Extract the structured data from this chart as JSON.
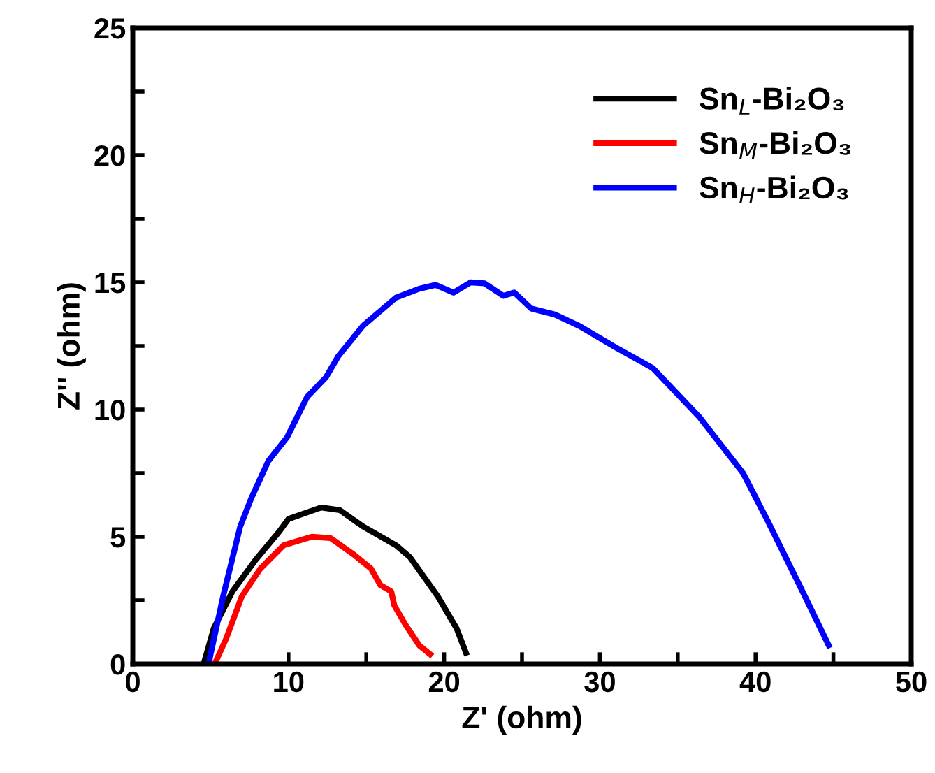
{
  "chart_data": {
    "type": "line",
    "xlabel": "Z' (ohm)",
    "ylabel": "Z'' (ohm)",
    "xlim": [
      0,
      50
    ],
    "ylim": [
      0,
      25
    ],
    "xticks": [
      0,
      {
        "value": 5,
        "label": null
      },
      10,
      {
        "value": 15,
        "label": null
      },
      20,
      {
        "value": 25,
        "label": null
      },
      30,
      {
        "value": 35,
        "label": null
      },
      40,
      {
        "value": 45,
        "label": null
      },
      50
    ],
    "yticks": [
      0,
      {
        "value": 2.5,
        "label": null
      },
      5,
      {
        "value": 7.5,
        "label": null
      },
      10,
      {
        "value": 12.5,
        "label": null
      },
      15,
      {
        "value": 17.5,
        "label": null
      },
      20,
      {
        "value": 22.5,
        "label": null
      },
      25
    ],
    "grid": false,
    "legend": "top right",
    "marker": "none",
    "line_style": "solid",
    "series": [
      {
        "name": "Sn$_{L}$-Bi₂O₃",
        "color": "#000000",
        "x": [
          4.6,
          5.2,
          6.4,
          7.9,
          9.4,
          10.0,
          12.1,
          13.3,
          14.8,
          16.9,
          17.8,
          19.6,
          20.8,
          21.4
        ],
        "values": [
          0.1,
          1.4,
          2.85,
          4.1,
          5.2,
          5.7,
          6.15,
          6.05,
          5.4,
          4.67,
          4.2,
          2.65,
          1.4,
          0.44
        ]
      },
      {
        "name": "Sn$_{M}$-Bi₂O₃",
        "color": "#ff0000",
        "x": [
          5.3,
          6.0,
          7.0,
          8.2,
          9.7,
          11.5,
          12.7,
          14.2,
          15.3,
          15.9,
          16.6,
          16.8,
          17.5,
          18.4,
          19.1
        ],
        "values": [
          0.05,
          1.0,
          2.65,
          3.75,
          4.67,
          5.0,
          4.95,
          4.3,
          3.75,
          3.1,
          2.85,
          2.3,
          1.56,
          0.73,
          0.38
        ]
      },
      {
        "name": "Sn$_{H}$-Bi₂O₃",
        "color": "#0000ff",
        "x": [
          4.9,
          5.8,
          6.9,
          7.6,
          8.7,
          9.9,
          11.2,
          12.4,
          13.2,
          14.8,
          16.9,
          18.4,
          19.45,
          20.6,
          21.7,
          22.6,
          23.8,
          24.5,
          25.6,
          27.1,
          28.7,
          31.0,
          33.4,
          36.4,
          39.2,
          40.8,
          42.9,
          44.7
        ],
        "values": [
          0.1,
          2.65,
          5.4,
          6.5,
          7.97,
          8.9,
          10.5,
          11.26,
          12.1,
          13.3,
          14.4,
          14.75,
          14.9,
          14.6,
          15.0,
          14.96,
          14.47,
          14.6,
          13.97,
          13.74,
          13.28,
          12.45,
          11.63,
          9.7,
          7.5,
          5.6,
          3.0,
          0.73
        ]
      }
    ]
  }
}
